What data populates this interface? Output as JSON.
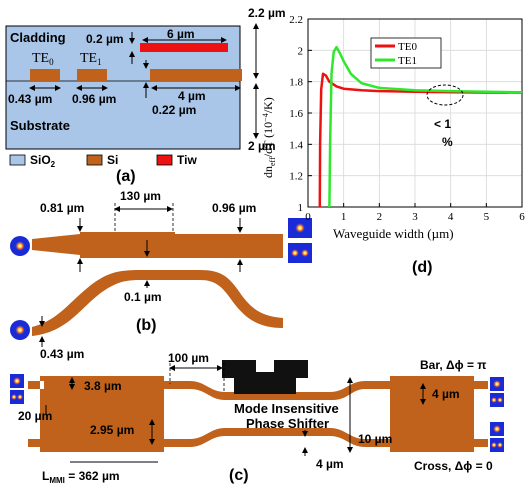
{
  "panel_a": {
    "cladding": "Cladding",
    "substrate": "Substrate",
    "te0_main": "TE",
    "te0_sub": "0",
    "te1_main": "TE",
    "te1_sub": "1",
    "d_0_2": "0.2 µm",
    "d_6": "6 µm",
    "d_2_2": "2.2 µm",
    "d_0_43": "0.43 µm",
    "d_0_96": "0.96 µm",
    "d_4": "4 µm",
    "d_0_22": "0.22 µm",
    "d_2": "2 µm",
    "legend_sio2": "SiO",
    "legend_sio2_sub": "2",
    "legend_si": "Si",
    "legend_tiw": "Tiw",
    "caption": "(a)",
    "colors": {
      "cladding": "#a9c6e8",
      "si": "#c0621c",
      "tiw": "#ee1111"
    }
  },
  "panel_b": {
    "d_0_81": "0.81 µm",
    "d_130": "130 µm",
    "d_0_96": "0.96 µm",
    "d_0_1": "0.1 µm",
    "d_0_43": "0.43 µm",
    "caption": "(b)"
  },
  "panel_c": {
    "d_100": "100 µm",
    "d_3_8": "3.8 µm",
    "d_20": "20 µm",
    "d_2_95": "2.95 µm",
    "d_4_right": "4 µm",
    "d_10": "10 µm",
    "d_4_bottom": "4 µm",
    "mode_insensitive_line1": "Mode Insensitive",
    "mode_insensitive_line2": "Phase Shifter",
    "bar_label": "Bar, Δϕ = π",
    "cross_label": "Cross, Δϕ = 0",
    "lmmi_main": "L",
    "lmmi_sub": "MMI",
    "lmmi_value": " = 362 µm",
    "caption": "(c)"
  },
  "chart_data": {
    "type": "line",
    "title": "",
    "xlabel": "Waveguide width (µm)",
    "ylabel_main": "dn",
    "ylabel_sub": "eff",
    "ylabel_rest": "/dT (10",
    "ylabel_exp": "−4",
    "ylabel_unit": "/K)",
    "xlim": [
      0,
      6
    ],
    "ylim": [
      1,
      2.2
    ],
    "xticks": [
      0,
      1,
      2,
      3,
      4,
      5,
      6
    ],
    "yticks": [
      1,
      1.2,
      1.4,
      1.6,
      1.8,
      2,
      2.2
    ],
    "grid": true,
    "legend_position": "top-right",
    "annotation_line1": "< 1",
    "annotation_line2": "%",
    "caption": "(d)",
    "series": [
      {
        "name": "TE0",
        "color": "#ee1111",
        "x": [
          0.33,
          0.34,
          0.37,
          0.42,
          0.5,
          0.6,
          0.8,
          1.0,
          1.5,
          2,
          3,
          4,
          5,
          6
        ],
        "y": [
          1.0,
          1.4,
          1.75,
          1.85,
          1.84,
          1.8,
          1.77,
          1.755,
          1.745,
          1.74,
          1.735,
          1.733,
          1.731,
          1.73
        ]
      },
      {
        "name": "TE1",
        "color": "#2ee82e",
        "x": [
          0.6,
          0.62,
          0.66,
          0.72,
          0.8,
          0.9,
          1.0,
          1.2,
          1.5,
          2,
          3,
          4,
          5,
          6
        ],
        "y": [
          1.0,
          1.4,
          1.85,
          1.99,
          2.02,
          1.98,
          1.93,
          1.85,
          1.79,
          1.76,
          1.745,
          1.74,
          1.735,
          1.732
        ]
      }
    ]
  }
}
